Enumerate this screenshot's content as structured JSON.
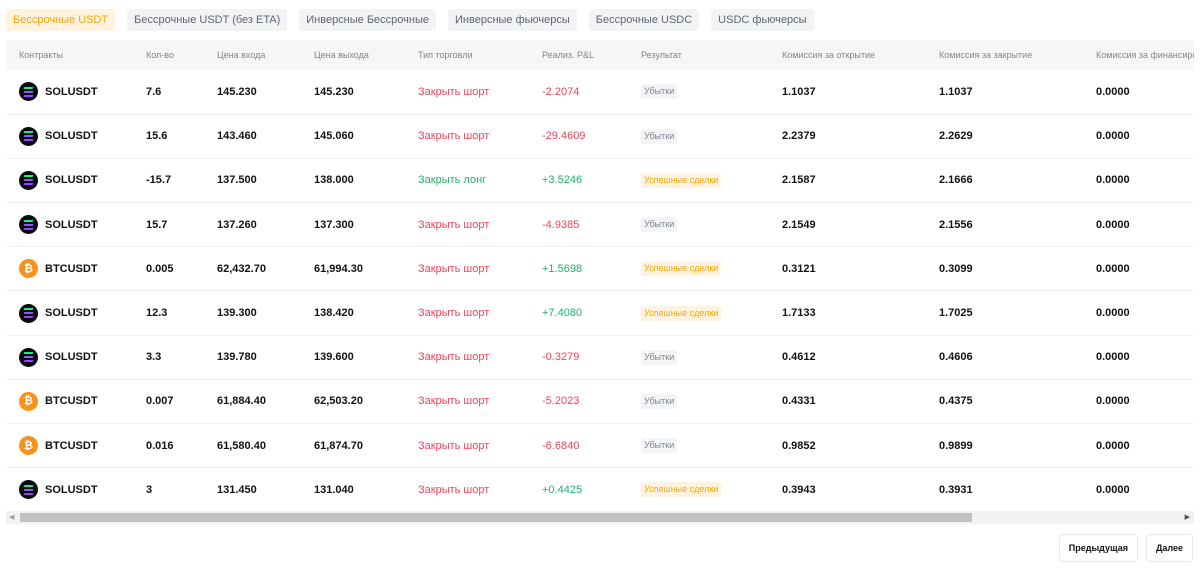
{
  "tabs": [
    {
      "label": "Бессрочные USDT",
      "active": true
    },
    {
      "label": "Бессрочные USDT (без ETA)",
      "active": false
    },
    {
      "label": "Инверсные Бессрочные",
      "active": false
    },
    {
      "label": "Инверсные фьючерсы",
      "active": false
    },
    {
      "label": "Бессрочные USDC",
      "active": false
    },
    {
      "label": "USDC фьючерсы",
      "active": false
    }
  ],
  "table": {
    "columns": [
      "Контракты",
      "Кол-во",
      "Цена входа",
      "Цена выхода",
      "Тип торговли",
      "Реализ. P&L",
      "Результат",
      "Комиссия за открытие",
      "Комиссия за закрытие",
      "Комиссия за финансиро"
    ],
    "rows": [
      {
        "coin": "sol",
        "contract": "SOLUSDT",
        "qty": "7.6",
        "entry": "145.230",
        "exit": "145.230",
        "trade_type": "Закрыть шорт",
        "side": "short",
        "pnl": "-2.2074",
        "result": "Убытки",
        "result_kind": "loss",
        "fee_open": "1.1037",
        "fee_close": "1.1037",
        "fee_funding": "0.0000"
      },
      {
        "coin": "sol",
        "contract": "SOLUSDT",
        "qty": "15.6",
        "entry": "143.460",
        "exit": "145.060",
        "trade_type": "Закрыть шорт",
        "side": "short",
        "pnl": "-29.4609",
        "result": "Убытки",
        "result_kind": "loss",
        "fee_open": "2.2379",
        "fee_close": "2.2629",
        "fee_funding": "0.0000"
      },
      {
        "coin": "sol",
        "contract": "SOLUSDT",
        "qty": "-15.7",
        "entry": "137.500",
        "exit": "138.000",
        "trade_type": "Закрыть лонг",
        "side": "long",
        "pnl": "+3.5246",
        "result": "Успешные сделки",
        "result_kind": "win",
        "fee_open": "2.1587",
        "fee_close": "2.1666",
        "fee_funding": "0.0000"
      },
      {
        "coin": "sol",
        "contract": "SOLUSDT",
        "qty": "15.7",
        "entry": "137.260",
        "exit": "137.300",
        "trade_type": "Закрыть шорт",
        "side": "short",
        "pnl": "-4.9385",
        "result": "Убытки",
        "result_kind": "loss",
        "fee_open": "2.1549",
        "fee_close": "2.1556",
        "fee_funding": "0.0000"
      },
      {
        "coin": "btc",
        "contract": "BTCUSDT",
        "qty": "0.005",
        "entry": "62,432.70",
        "exit": "61,994.30",
        "trade_type": "Закрыть шорт",
        "side": "short",
        "pnl": "+1.5698",
        "result": "Успешные сделки",
        "result_kind": "win",
        "fee_open": "0.3121",
        "fee_close": "0.3099",
        "fee_funding": "0.0000"
      },
      {
        "coin": "sol",
        "contract": "SOLUSDT",
        "qty": "12.3",
        "entry": "139.300",
        "exit": "138.420",
        "trade_type": "Закрыть шорт",
        "side": "short",
        "pnl": "+7.4080",
        "result": "Успешные сделки",
        "result_kind": "win",
        "fee_open": "1.7133",
        "fee_close": "1.7025",
        "fee_funding": "0.0000"
      },
      {
        "coin": "sol",
        "contract": "SOLUSDT",
        "qty": "3.3",
        "entry": "139.780",
        "exit": "139.600",
        "trade_type": "Закрыть шорт",
        "side": "short",
        "pnl": "-0.3279",
        "result": "Убытки",
        "result_kind": "loss",
        "fee_open": "0.4612",
        "fee_close": "0.4606",
        "fee_funding": "0.0000"
      },
      {
        "coin": "btc",
        "contract": "BTCUSDT",
        "qty": "0.007",
        "entry": "61,884.40",
        "exit": "62,503.20",
        "trade_type": "Закрыть шорт",
        "side": "short",
        "pnl": "-5.2023",
        "result": "Убытки",
        "result_kind": "loss",
        "fee_open": "0.4331",
        "fee_close": "0.4375",
        "fee_funding": "0.0000"
      },
      {
        "coin": "btc",
        "contract": "BTCUSDT",
        "qty": "0.016",
        "entry": "61,580.40",
        "exit": "61,874.70",
        "trade_type": "Закрыть шорт",
        "side": "short",
        "pnl": "-6.6840",
        "result": "Убытки",
        "result_kind": "loss",
        "fee_open": "0.9852",
        "fee_close": "0.9899",
        "fee_funding": "0.0000"
      },
      {
        "coin": "sol",
        "contract": "SOLUSDT",
        "qty": "3",
        "entry": "131.450",
        "exit": "131.040",
        "trade_type": "Закрыть шорт",
        "side": "short",
        "pnl": "+0.4425",
        "result": "Успешные сделки",
        "result_kind": "win",
        "fee_open": "0.3943",
        "fee_close": "0.3931",
        "fee_funding": "0.0000"
      }
    ]
  },
  "btc_icon_glyph": "₿",
  "pagination": {
    "prev_label": "Предыдущая",
    "next_label": "Далее"
  },
  "icons": {
    "scroll_left": "scroll-left-icon",
    "scroll_right": "scroll-right-icon",
    "sol": "solana-icon",
    "btc": "bitcoin-icon"
  },
  "colors": {
    "accent": "#f7a600",
    "profit": "#20b26c",
    "loss": "#f0435a",
    "muted": "#81858c"
  }
}
